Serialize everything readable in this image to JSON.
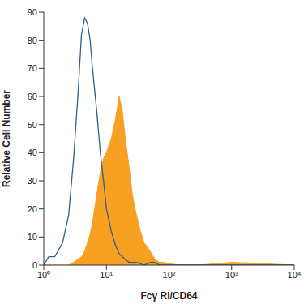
{
  "chart_data": {
    "type": "area",
    "x_label": "Fcγ RI/CD64",
    "y_label": "Relative Cell Number",
    "log": "x",
    "grid": false,
    "xlim": [
      1,
      10000
    ],
    "xticks": [
      {
        "value": 1,
        "label": "10⁰"
      },
      {
        "value": 10,
        "label": "10¹"
      },
      {
        "value": 100,
        "label": "10²"
      },
      {
        "value": 1000,
        "label": "10³"
      },
      {
        "value": 10000,
        "label": "10⁴"
      }
    ],
    "ylim": [
      0,
      90
    ],
    "yticks": [
      0,
      10,
      20,
      30,
      40,
      50,
      60,
      70,
      80,
      90
    ],
    "x": [
      1,
      1.2,
      1.5,
      2,
      2.5,
      3,
      3.5,
      4,
      4.5,
      5,
      5.5,
      6,
      7,
      8,
      9,
      10,
      12,
      14,
      16,
      18,
      20,
      23,
      26,
      30,
      35,
      40,
      50,
      60,
      70,
      80,
      100,
      150,
      200,
      300,
      1000,
      10000
    ],
    "series": [
      {
        "type": "area",
        "color": "#f7a021",
        "values": [
          0,
          0,
          0,
          0,
          0,
          1,
          2,
          3,
          5,
          8,
          11,
          15,
          25,
          33,
          38,
          40,
          45,
          52,
          60,
          55,
          45,
          35,
          25,
          18,
          12,
          8,
          5,
          2,
          1,
          1,
          0.5,
          0,
          0,
          0,
          1,
          0
        ]
      },
      {
        "type": "line",
        "color": "#2f5f8a",
        "values": [
          0,
          3,
          3,
          8,
          18,
          38,
          60,
          82,
          88,
          86,
          80,
          70,
          55,
          40,
          30,
          20,
          12,
          7,
          4,
          3,
          2,
          1,
          1,
          1,
          0.5,
          0,
          1,
          1,
          0,
          0,
          0,
          0,
          0,
          0,
          0,
          0
        ]
      }
    ]
  }
}
